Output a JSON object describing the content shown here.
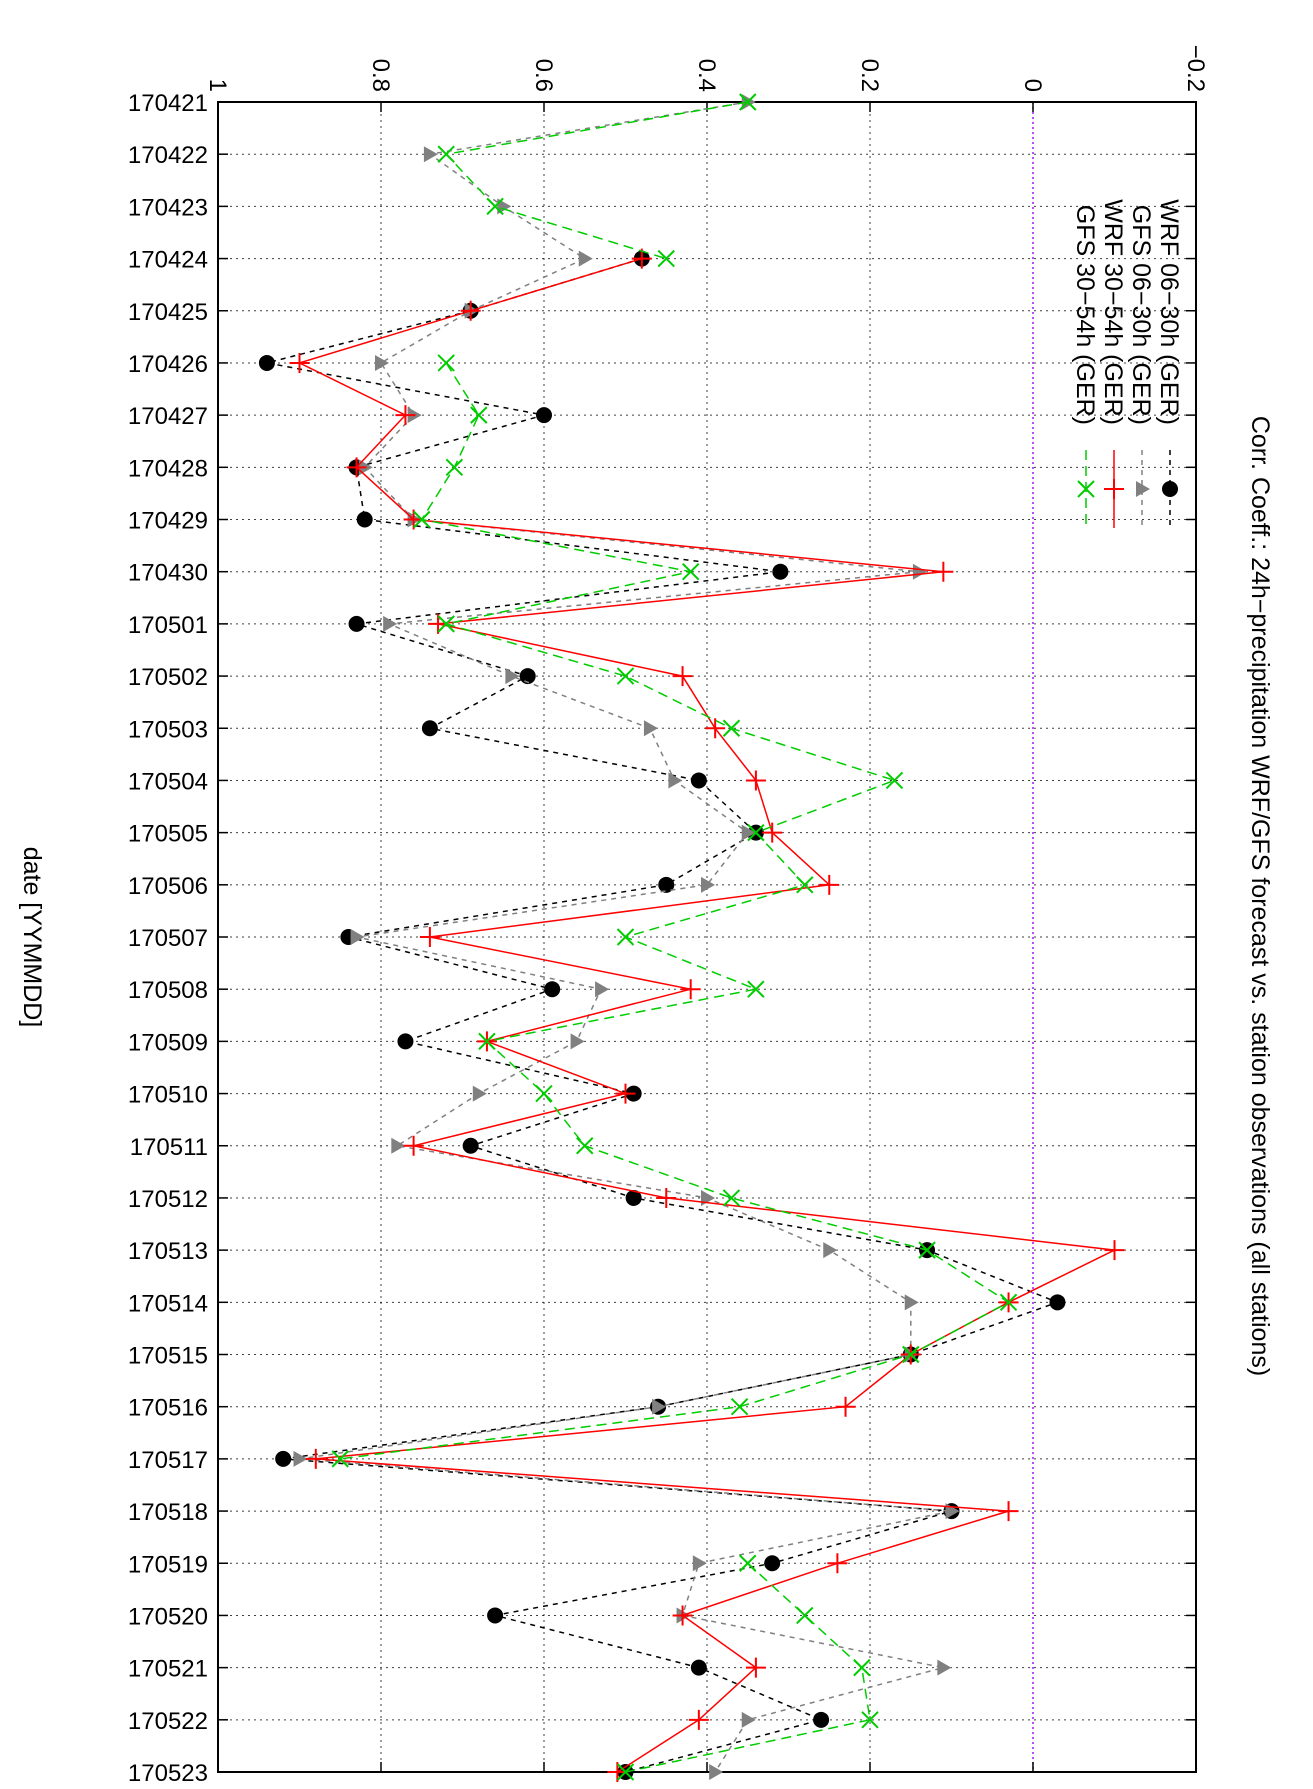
{
  "chart_data": {
    "type": "line",
    "title": "Corr. Coeff.:   24h−precipitation WRF/GFS forecast vs. station observations (all stations)",
    "xlabel": "date [YYMMDD]",
    "ylabel": "",
    "categories": [
      "170421",
      "170422",
      "170423",
      "170424",
      "170425",
      "170426",
      "170427",
      "170428",
      "170429",
      "170430",
      "170501",
      "170502",
      "170503",
      "170504",
      "170505",
      "170506",
      "170507",
      "170508",
      "170509",
      "170510",
      "170511",
      "170512",
      "170513",
      "170514",
      "170515",
      "170516",
      "170517",
      "170518",
      "170519",
      "170520",
      "170521",
      "170522",
      "170523"
    ],
    "ylim": [
      -0.2,
      1
    ],
    "yticks": [
      "−0.2",
      "0",
      "0.2",
      "0.4",
      "0.6",
      "0.8",
      "1"
    ],
    "ytick_values": [
      -0.2,
      0,
      0.2,
      0.4,
      0.6,
      0.8,
      1
    ],
    "grid": true,
    "legend_position": "top-right",
    "series": [
      {
        "name": "WRF 06−30h (GER)",
        "color": "#000000",
        "line": "dashed",
        "marker": "circle",
        "values": [
          null,
          null,
          null,
          0.48,
          0.69,
          0.94,
          0.6,
          0.83,
          0.82,
          0.31,
          0.83,
          0.62,
          0.74,
          0.41,
          0.34,
          0.45,
          0.84,
          0.59,
          0.77,
          0.49,
          0.69,
          0.49,
          0.13,
          -0.03,
          0.15,
          0.46,
          0.92,
          0.1,
          0.32,
          0.66,
          0.41,
          0.26,
          0.5
        ]
      },
      {
        "name": "GFS 06−30h (GER)",
        "color": "#808080",
        "line": "dashed",
        "marker": "triangle",
        "values": [
          0.35,
          0.74,
          0.65,
          0.55,
          0.69,
          0.8,
          0.76,
          0.82,
          0.76,
          0.14,
          0.79,
          0.64,
          0.47,
          0.44,
          0.35,
          0.4,
          0.83,
          0.53,
          0.56,
          0.68,
          0.78,
          0.4,
          0.25,
          0.15,
          0.15,
          0.46,
          0.9,
          0.1,
          0.41,
          0.43,
          0.11,
          0.35,
          0.39
        ]
      },
      {
        "name": "WRF 30−54h (GER)",
        "color": "#ff0000",
        "line": "solid",
        "marker": "plus",
        "values": [
          null,
          null,
          null,
          0.48,
          0.69,
          0.9,
          0.77,
          0.83,
          0.76,
          0.11,
          0.73,
          0.43,
          0.39,
          0.34,
          0.32,
          0.25,
          0.74,
          0.42,
          0.67,
          0.5,
          0.76,
          0.45,
          -0.1,
          0.03,
          0.15,
          0.23,
          0.88,
          0.03,
          0.24,
          0.43,
          0.34,
          0.41,
          0.51
        ]
      },
      {
        "name": "GFS 30−54h (GER)",
        "color": "#00cc00",
        "line": "dashed",
        "marker": "cross",
        "values": [
          0.35,
          0.72,
          0.66,
          0.45,
          null,
          0.72,
          0.68,
          0.71,
          0.75,
          0.42,
          0.72,
          0.5,
          0.37,
          0.17,
          0.34,
          0.28,
          0.5,
          0.34,
          0.67,
          0.6,
          0.55,
          0.37,
          0.13,
          0.03,
          0.15,
          0.36,
          0.85,
          null,
          0.35,
          0.28,
          0.21,
          0.2,
          0.5
        ]
      }
    ]
  }
}
